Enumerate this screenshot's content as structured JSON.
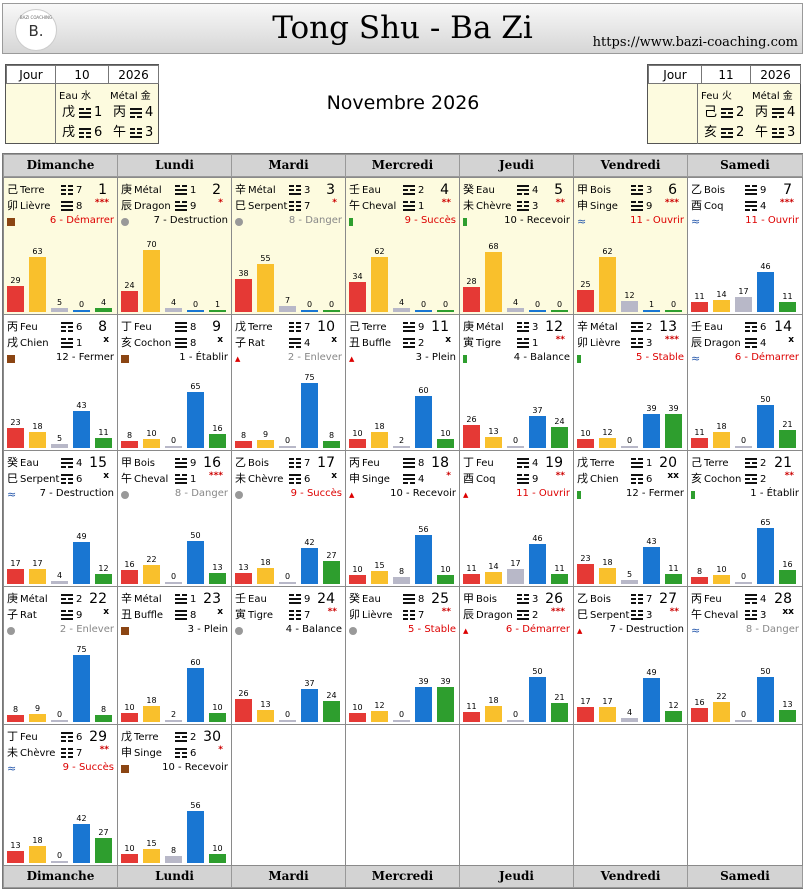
{
  "header": {
    "logo_text": "B.",
    "logo_small": "BAZI COACHING",
    "title": "Tong Shu - Ba Zi",
    "site": "https://www.bazi-coaching.com"
  },
  "month": "Novembre 2026",
  "info_left": {
    "lbl": "Jour",
    "n": "10",
    "year": "2026",
    "el1": "Eau 水",
    "el2": "Métal 金",
    "row1": [
      "戊",
      "1",
      "丙",
      "4"
    ],
    "row2": [
      "戌",
      "6",
      "午",
      "3"
    ]
  },
  "info_right": {
    "lbl": "Jour",
    "n": "11",
    "year": "2026",
    "el1": "Feu 火",
    "el2": "Métal 金",
    "row1": [
      "己",
      "2",
      "丙",
      "4"
    ],
    "row2": [
      "亥",
      "2",
      "午",
      "3"
    ]
  },
  "weekdays": [
    "Dimanche",
    "Lundi",
    "Mardi",
    "Mercredi",
    "Jeudi",
    "Vendredi",
    "Samedi"
  ],
  "colors": {
    "red": "#e53935",
    "yellow": "#f9c02c",
    "gray": "#b8b8c8",
    "blue": "#1976d2",
    "green": "#2e9e2e",
    "brown": "#8b4513"
  },
  "days": [
    {
      "d": "1",
      "c1": "己",
      "s1": "Terre",
      "h1": "7",
      "c2": "卯",
      "s2": "Lièvre",
      "h2": "8",
      "ax": "***",
      "off": "6 - Démarrer",
      "ot": "red",
      "icon": "brown",
      "hl": true,
      "v": [
        "29",
        "63",
        "5",
        "0",
        "4"
      ]
    },
    {
      "d": "2",
      "c1": "庚",
      "s1": "Métal",
      "h1": "1",
      "c2": "辰",
      "s2": "Dragon",
      "h2": "9",
      "ax": "*",
      "off": "7 - Destruction",
      "ot": "",
      "icon": "gray",
      "hl": true,
      "v": [
        "24",
        "70",
        "4",
        "0",
        "1"
      ]
    },
    {
      "d": "3",
      "c1": "辛",
      "s1": "Métal",
      "h1": "3",
      "c2": "巳",
      "s2": "Serpent",
      "h2": "7",
      "ax": "*",
      "off": "8 - Danger",
      "ot": "gray",
      "icon": "gray",
      "hl": true,
      "v": [
        "38",
        "55",
        "7",
        "0",
        "0"
      ]
    },
    {
      "d": "4",
      "c1": "壬",
      "s1": "Eau",
      "h1": "2",
      "c2": "午",
      "s2": "Cheval",
      "h2": "1",
      "ax": "**",
      "off": "9 - Succès",
      "ot": "red",
      "icon": "green",
      "hl": true,
      "v": [
        "34",
        "62",
        "4",
        "0",
        "0"
      ]
    },
    {
      "d": "5",
      "c1": "癸",
      "s1": "Eau",
      "h1": "4",
      "c2": "未",
      "s2": "Chèvre",
      "h2": "3",
      "ax": "**",
      "off": "10 - Recevoir",
      "ot": "",
      "icon": "green",
      "hl": true,
      "v": [
        "28",
        "68",
        "4",
        "0",
        "0"
      ]
    },
    {
      "d": "6",
      "c1": "甲",
      "s1": "Bois",
      "h1": "3",
      "c2": "申",
      "s2": "Singe",
      "h2": "9",
      "ax": "***",
      "off": "11 - Ouvrir",
      "ot": "red",
      "icon": "water",
      "hl": true,
      "v": [
        "25",
        "62",
        "12",
        "1",
        "0"
      ]
    },
    {
      "d": "7",
      "c1": "乙",
      "s1": "Bois",
      "h1": "9",
      "c2": "酉",
      "s2": "Coq",
      "h2": "4",
      "ax": "***",
      "off": "11 - Ouvrir",
      "ot": "red",
      "icon": "water",
      "hl": false,
      "v": [
        "11",
        "14",
        "17",
        "46",
        "11"
      ]
    },
    {
      "d": "8",
      "c1": "丙",
      "s1": "Feu",
      "h1": "6",
      "c2": "戌",
      "s2": "Chien",
      "h2": "1",
      "ax": "x",
      "off": "12 - Fermer",
      "ot": "",
      "icon": "brown",
      "hl": false,
      "v": [
        "23",
        "18",
        "5",
        "43",
        "11"
      ]
    },
    {
      "d": "9",
      "c1": "丁",
      "s1": "Feu",
      "h1": "8",
      "c2": "亥",
      "s2": "Cochon",
      "h2": "8",
      "ax": "x",
      "off": "1 - Établir",
      "ot": "",
      "icon": "brown",
      "hl": false,
      "v": [
        "8",
        "10",
        "0",
        "65",
        "16"
      ]
    },
    {
      "d": "10",
      "c1": "戊",
      "s1": "Terre",
      "h1": "7",
      "c2": "子",
      "s2": "Rat",
      "h2": "4",
      "ax": "x",
      "off": "2 - Enlever",
      "ot": "gray",
      "icon": "fire",
      "hl": false,
      "v": [
        "8",
        "9",
        "0",
        "75",
        "8"
      ]
    },
    {
      "d": "11",
      "c1": "己",
      "s1": "Terre",
      "h1": "9",
      "c2": "丑",
      "s2": "Buffle",
      "h2": "2",
      "ax": "x",
      "off": "3 - Plein",
      "ot": "",
      "icon": "fire",
      "hl": false,
      "v": [
        "10",
        "18",
        "2",
        "60",
        "10"
      ]
    },
    {
      "d": "12",
      "c1": "庚",
      "s1": "Métal",
      "h1": "3",
      "c2": "寅",
      "s2": "Tigre",
      "h2": "1",
      "ax": "**",
      "off": "4 - Balance",
      "ot": "",
      "icon": "green",
      "hl": false,
      "v": [
        "26",
        "13",
        "0",
        "37",
        "24"
      ]
    },
    {
      "d": "13",
      "c1": "辛",
      "s1": "Métal",
      "h1": "2",
      "c2": "卯",
      "s2": "Lièvre",
      "h2": "3",
      "ax": "***",
      "off": "5 - Stable",
      "ot": "red",
      "icon": "green",
      "hl": false,
      "v": [
        "10",
        "12",
        "0",
        "39",
        "39"
      ]
    },
    {
      "d": "14",
      "c1": "壬",
      "s1": "Eau",
      "h1": "6",
      "c2": "辰",
      "s2": "Dragon",
      "h2": "4",
      "ax": "x",
      "off": "6 - Démarrer",
      "ot": "red",
      "icon": "water",
      "hl": false,
      "v": [
        "11",
        "18",
        "0",
        "50",
        "21"
      ]
    },
    {
      "d": "15",
      "c1": "癸",
      "s1": "Eau",
      "h1": "4",
      "c2": "巳",
      "s2": "Serpent",
      "h2": "6",
      "ax": "x",
      "off": "7 - Destruction",
      "ot": "",
      "icon": "water",
      "hl": false,
      "v": [
        "17",
        "17",
        "4",
        "49",
        "12"
      ]
    },
    {
      "d": "16",
      "c1": "甲",
      "s1": "Bois",
      "h1": "9",
      "c2": "午",
      "s2": "Cheval",
      "h2": "1",
      "ax": "***",
      "off": "8 - Danger",
      "ot": "gray",
      "icon": "gray",
      "hl": false,
      "v": [
        "16",
        "22",
        "0",
        "50",
        "13"
      ]
    },
    {
      "d": "17",
      "c1": "乙",
      "s1": "Bois",
      "h1": "7",
      "c2": "未",
      "s2": "Chèvre",
      "h2": "6",
      "ax": "x",
      "off": "9 - Succès",
      "ot": "red",
      "icon": "gray",
      "hl": false,
      "v": [
        "13",
        "18",
        "0",
        "42",
        "27"
      ]
    },
    {
      "d": "18",
      "c1": "丙",
      "s1": "Feu",
      "h1": "8",
      "c2": "申",
      "s2": "Singe",
      "h2": "4",
      "ax": "*",
      "off": "10 - Recevoir",
      "ot": "",
      "icon": "fire",
      "hl": false,
      "v": [
        "10",
        "15",
        "8",
        "56",
        "10"
      ]
    },
    {
      "d": "19",
      "c1": "丁",
      "s1": "Feu",
      "h1": "4",
      "c2": "酉",
      "s2": "Coq",
      "h2": "9",
      "ax": "**",
      "off": "11 - Ouvrir",
      "ot": "red",
      "icon": "fire",
      "hl": false,
      "v": [
        "11",
        "14",
        "17",
        "46",
        "11"
      ]
    },
    {
      "d": "20",
      "c1": "戊",
      "s1": "Terre",
      "h1": "1",
      "c2": "戌",
      "s2": "Chien",
      "h2": "6",
      "ax": "xx",
      "off": "12 - Fermer",
      "ot": "",
      "icon": "green",
      "hl": false,
      "v": [
        "23",
        "18",
        "5",
        "43",
        "11"
      ]
    },
    {
      "d": "21",
      "c1": "己",
      "s1": "Terre",
      "h1": "2",
      "c2": "亥",
      "s2": "Cochon",
      "h2": "2",
      "ax": "**",
      "off": "1 - Établir",
      "ot": "",
      "icon": "green",
      "hl": false,
      "v": [
        "8",
        "10",
        "0",
        "65",
        "16"
      ]
    },
    {
      "d": "22",
      "c1": "庚",
      "s1": "Métal",
      "h1": "2",
      "c2": "子",
      "s2": "Rat",
      "h2": "9",
      "ax": "x",
      "off": "2 - Enlever",
      "ot": "gray",
      "icon": "gray",
      "hl": false,
      "v": [
        "8",
        "9",
        "0",
        "75",
        "8"
      ]
    },
    {
      "d": "23",
      "c1": "辛",
      "s1": "Métal",
      "h1": "1",
      "c2": "丑",
      "s2": "Buffle",
      "h2": "8",
      "ax": "x",
      "off": "3 - Plein",
      "ot": "",
      "icon": "brown",
      "hl": false,
      "v": [
        "10",
        "18",
        "2",
        "60",
        "10"
      ]
    },
    {
      "d": "24",
      "c1": "壬",
      "s1": "Eau",
      "h1": "9",
      "c2": "寅",
      "s2": "Tigre",
      "h2": "7",
      "ax": "**",
      "off": "4 - Balance",
      "ot": "",
      "icon": "gray",
      "hl": false,
      "v": [
        "26",
        "13",
        "0",
        "37",
        "24"
      ]
    },
    {
      "d": "25",
      "c1": "癸",
      "s1": "Eau",
      "h1": "8",
      "c2": "卯",
      "s2": "Lièvre",
      "h2": "7",
      "ax": "**",
      "off": "5 - Stable",
      "ot": "red",
      "icon": "gray",
      "hl": false,
      "v": [
        "10",
        "12",
        "0",
        "39",
        "39"
      ]
    },
    {
      "d": "26",
      "c1": "甲",
      "s1": "Bois",
      "h1": "3",
      "c2": "辰",
      "s2": "Dragon",
      "h2": "2",
      "ax": "***",
      "off": "6 - Démarrer",
      "ot": "red",
      "icon": "fire",
      "hl": false,
      "v": [
        "11",
        "18",
        "0",
        "50",
        "21"
      ]
    },
    {
      "d": "27",
      "c1": "乙",
      "s1": "Bois",
      "h1": "7",
      "c2": "巳",
      "s2": "Serpent",
      "h2": "3",
      "ax": "**",
      "off": "7 - Destruction",
      "ot": "",
      "icon": "fire",
      "hl": false,
      "v": [
        "17",
        "17",
        "4",
        "49",
        "12"
      ]
    },
    {
      "d": "28",
      "c1": "丙",
      "s1": "Feu",
      "h1": "4",
      "c2": "午",
      "s2": "Cheval",
      "h2": "3",
      "ax": "xx",
      "off": "8 - Danger",
      "ot": "gray",
      "icon": "water",
      "hl": false,
      "v": [
        "16",
        "22",
        "0",
        "50",
        "13"
      ]
    },
    {
      "d": "29",
      "c1": "丁",
      "s1": "Feu",
      "h1": "6",
      "c2": "未",
      "s2": "Chèvre",
      "h2": "7",
      "ax": "**",
      "off": "9 - Succès",
      "ot": "red",
      "icon": "water",
      "hl": false,
      "v": [
        "13",
        "18",
        "0",
        "42",
        "27"
      ]
    },
    {
      "d": "30",
      "c1": "戊",
      "s1": "Terre",
      "h1": "2",
      "c2": "申",
      "s2": "Singe",
      "h2": "6",
      "ax": "*",
      "off": "10 - Recevoir",
      "ot": "",
      "icon": "brown",
      "hl": false,
      "v": [
        "10",
        "15",
        "8",
        "56",
        "10"
      ]
    }
  ]
}
